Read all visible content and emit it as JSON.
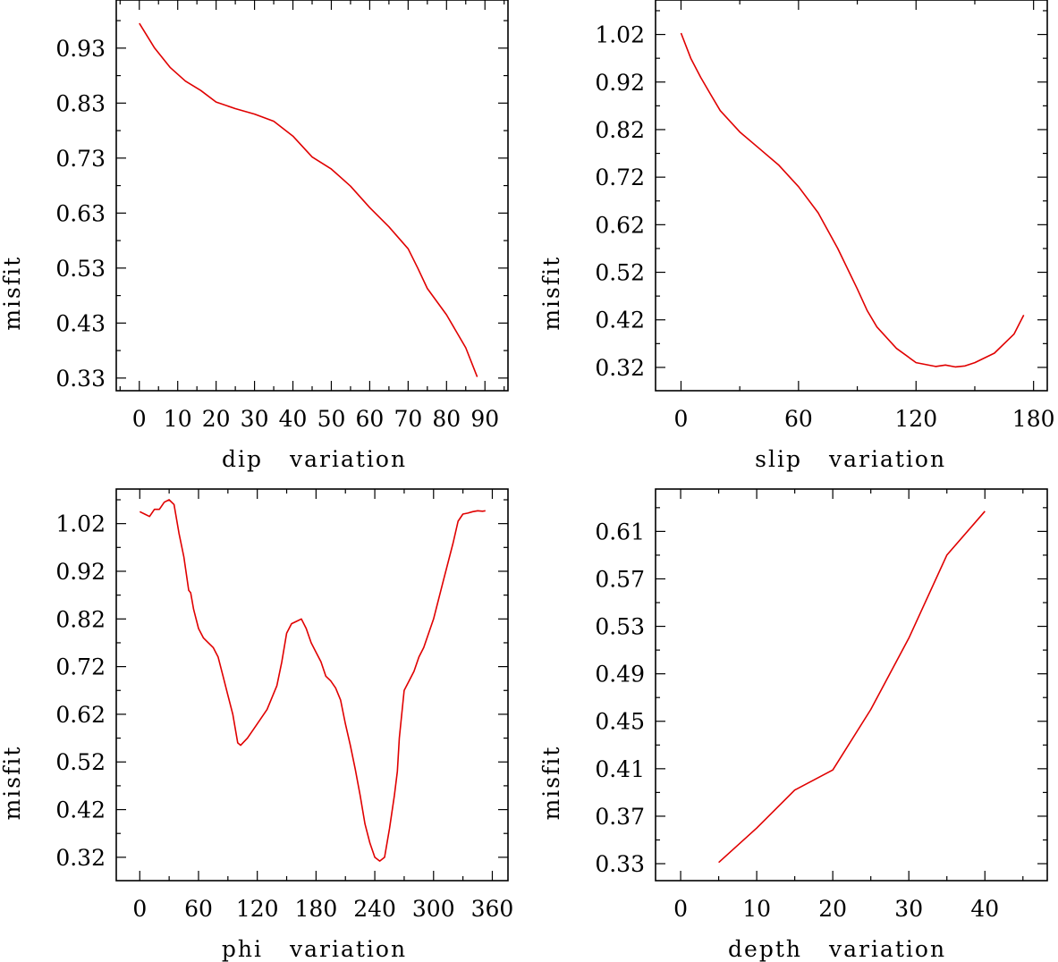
{
  "chart_data": [
    {
      "type": "line",
      "xlabel_word": "dip",
      "xlabel_suffix": "variation",
      "ylabel": "misfit",
      "xlim": [
        -6,
        96
      ],
      "ylim": [
        0.307,
        1.0175
      ],
      "xticks": [
        0,
        10,
        20,
        30,
        40,
        50,
        60,
        70,
        80,
        90
      ],
      "xtick_labels": [
        "0",
        "10",
        "20",
        "30",
        "40",
        "50",
        "60",
        "70",
        "80",
        "90"
      ],
      "xminor": 5,
      "yticks": [
        0.33,
        0.43,
        0.53,
        0.63,
        0.73,
        0.83,
        0.93
      ],
      "ytick_labels": [
        "0.33",
        "0.43",
        "0.53",
        "0.63",
        "0.73",
        "0.83",
        "0.93"
      ],
      "yminor": 0.05,
      "series": [
        {
          "name": "dip",
          "color": "#e00000",
          "x": [
            0,
            4,
            8,
            12,
            16,
            20,
            25,
            30,
            35,
            40,
            45,
            50,
            55,
            60,
            65,
            70,
            72.5,
            75,
            80,
            85,
            88
          ],
          "y": [
            0.975,
            0.93,
            0.895,
            0.87,
            0.853,
            0.832,
            0.82,
            0.81,
            0.797,
            0.77,
            0.732,
            0.71,
            0.679,
            0.64,
            0.605,
            0.565,
            0.53,
            0.493,
            0.445,
            0.385,
            0.332
          ]
        }
      ]
    },
    {
      "type": "line",
      "xlabel_word": "slip",
      "xlabel_suffix": "variation",
      "ylabel": "misfit",
      "xlim": [
        -13,
        187
      ],
      "ylim": [
        0.271,
        1.0925
      ],
      "xticks": [
        0,
        60,
        120,
        180
      ],
      "xtick_labels": [
        "0",
        "60",
        "120",
        "180"
      ],
      "xminor": 30,
      "yticks": [
        0.32,
        0.42,
        0.52,
        0.62,
        0.72,
        0.82,
        0.92,
        1.02
      ],
      "ytick_labels": [
        "0.32",
        "0.42",
        "0.52",
        "0.62",
        "0.72",
        "0.82",
        "0.92",
        "1.02"
      ],
      "yminor": 0.05,
      "series": [
        {
          "name": "slip",
          "color": "#e00000",
          "x": [
            0,
            5,
            10,
            15,
            20,
            30,
            40,
            50,
            60,
            70,
            80,
            90,
            95,
            100,
            110,
            120,
            130,
            135,
            140,
            145,
            150,
            160,
            170,
            175
          ],
          "y": [
            1.023,
            0.97,
            0.93,
            0.895,
            0.86,
            0.815,
            0.78,
            0.745,
            0.7,
            0.645,
            0.57,
            0.485,
            0.44,
            0.405,
            0.36,
            0.33,
            0.322,
            0.325,
            0.321,
            0.323,
            0.33,
            0.35,
            0.39,
            0.43
          ]
        }
      ]
    },
    {
      "type": "line",
      "xlabel_word": "phi",
      "xlabel_suffix": "variation",
      "ylabel": "misfit",
      "xlim": [
        -24,
        376
      ],
      "ylim": [
        0.271,
        1.0925
      ],
      "xticks": [
        0,
        60,
        120,
        180,
        240,
        300,
        360
      ],
      "xtick_labels": [
        "0",
        "60",
        "120",
        "180",
        "240",
        "300",
        "360"
      ],
      "xminor": 30,
      "yticks": [
        0.32,
        0.42,
        0.52,
        0.62,
        0.72,
        0.82,
        0.92,
        1.02
      ],
      "ytick_labels": [
        "0.32",
        "0.42",
        "0.52",
        "0.62",
        "0.72",
        "0.82",
        "0.92",
        "1.02"
      ],
      "yminor": 0.05,
      "series": [
        {
          "name": "phi",
          "color": "#e00000",
          "x": [
            0,
            5,
            10,
            15,
            20,
            25,
            30,
            35,
            40,
            45,
            50,
            52,
            55,
            60,
            65,
            70,
            75,
            80,
            85,
            90,
            95,
            100,
            103,
            110,
            120,
            130,
            140,
            145,
            150,
            155,
            160,
            165,
            170,
            175,
            180,
            185,
            190,
            195,
            200,
            205,
            210,
            215,
            220,
            225,
            230,
            235,
            240,
            245,
            250,
            255,
            260,
            263,
            265,
            270,
            275,
            280,
            285,
            290,
            300,
            310,
            320,
            325,
            330,
            335,
            340,
            345,
            350,
            353
          ],
          "y": [
            1.045,
            1.04,
            1.035,
            1.05,
            1.05,
            1.065,
            1.07,
            1.06,
            1.0,
            0.95,
            0.88,
            0.875,
            0.84,
            0.8,
            0.78,
            0.77,
            0.76,
            0.74,
            0.7,
            0.66,
            0.62,
            0.56,
            0.555,
            0.57,
            0.6,
            0.63,
            0.68,
            0.73,
            0.79,
            0.81,
            0.815,
            0.82,
            0.8,
            0.77,
            0.75,
            0.73,
            0.7,
            0.69,
            0.675,
            0.65,
            0.6,
            0.555,
            0.505,
            0.45,
            0.39,
            0.35,
            0.32,
            0.312,
            0.32,
            0.38,
            0.45,
            0.5,
            0.57,
            0.67,
            0.69,
            0.71,
            0.74,
            0.76,
            0.82,
            0.9,
            0.98,
            1.025,
            1.04,
            1.042,
            1.045,
            1.047,
            1.046,
            1.047
          ]
        }
      ]
    },
    {
      "type": "line",
      "xlabel_word": "depth",
      "xlabel_suffix": "variation",
      "ylabel": "misfit",
      "xlim": [
        -3.3,
        48.2
      ],
      "ylim": [
        0.3157,
        0.6457
      ],
      "xticks": [
        0,
        10,
        20,
        30,
        40
      ],
      "xtick_labels": [
        "0",
        "10",
        "20",
        "30",
        "40"
      ],
      "xminor": 5,
      "yticks": [
        0.33,
        0.37,
        0.41,
        0.45,
        0.49,
        0.53,
        0.57,
        0.61
      ],
      "ytick_labels": [
        "0.33",
        "0.37",
        "0.41",
        "0.45",
        "0.49",
        "0.53",
        "0.57",
        "0.61"
      ],
      "yminor": 0.02,
      "series": [
        {
          "name": "depth",
          "color": "#e00000",
          "x": [
            5,
            10,
            15,
            20,
            25,
            30,
            35,
            40
          ],
          "y": [
            0.331,
            0.36,
            0.392,
            0.409,
            0.46,
            0.52,
            0.59,
            0.627
          ]
        }
      ]
    }
  ]
}
